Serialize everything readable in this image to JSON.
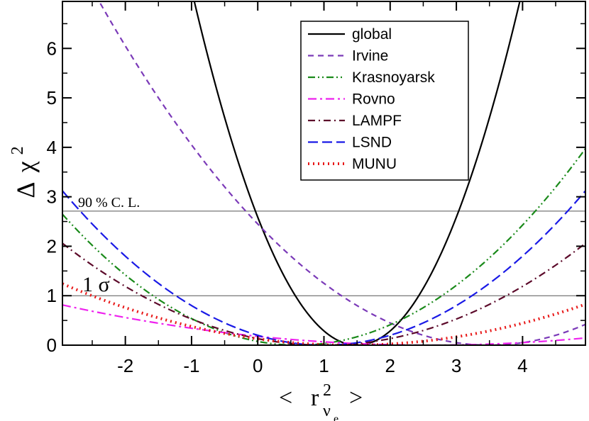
{
  "chart_data": {
    "type": "line",
    "xlabel": {
      "prefix": "<",
      "base": "r",
      "sup": "2",
      "sub": "ν",
      "subsub": "e",
      "suffix": ">"
    },
    "ylabel": {
      "prefix": "Δ",
      "base": "χ",
      "sup": "2"
    },
    "xlim": [
      -2.95,
      4.95
    ],
    "ylim": [
      0,
      6.95
    ],
    "xticks": [
      -2,
      -1,
      0,
      1,
      2,
      3,
      4
    ],
    "xtick_labels": [
      "-2",
      "-1",
      "0",
      "1",
      "2",
      "3",
      "4"
    ],
    "yticks": [
      0,
      1,
      2,
      3,
      4,
      5,
      6
    ],
    "ytick_labels": [
      "0",
      "1",
      "2",
      "3",
      "4",
      "5",
      "6"
    ],
    "grid": false,
    "legend_position": "top-right",
    "reference_lines": [
      {
        "y": 2.71,
        "label": "90 % C. L."
      },
      {
        "y": 1.0,
        "label": "1 σ"
      }
    ],
    "series": [
      {
        "name": "global",
        "color": "#000000",
        "dash": "solid",
        "min_x": 1.5,
        "curvature": 1.15
      },
      {
        "name": "Irvine",
        "color": "#7b3ab8",
        "dash": "8,6",
        "min_x": 3.5,
        "curvature": 0.2
      },
      {
        "name": "Krasnoyarsk",
        "color": "#1a8a1a",
        "dash": "10,4,2,4,2,4",
        "min_x": 0.6,
        "curvature": 0.21
      },
      {
        "name": "Rovno",
        "color": "#ee22ee",
        "dash": "12,5,3,5",
        "min_x": 2.6,
        "curvature": 0.0264
      },
      {
        "name": "LAMPF",
        "color": "#5c0a2a",
        "dash": "10,5,2,5",
        "min_x": 1.0,
        "curvature": 0.132
      },
      {
        "name": "LSND",
        "color": "#1a1ae6",
        "dash": "14,6",
        "min_x": 1.0,
        "curvature": 0.2
      },
      {
        "name": "MUNU",
        "color": "#e81a1a",
        "dash": "2,5",
        "width": 4,
        "min_x": 1.4,
        "curvature": 0.0656
      }
    ]
  }
}
